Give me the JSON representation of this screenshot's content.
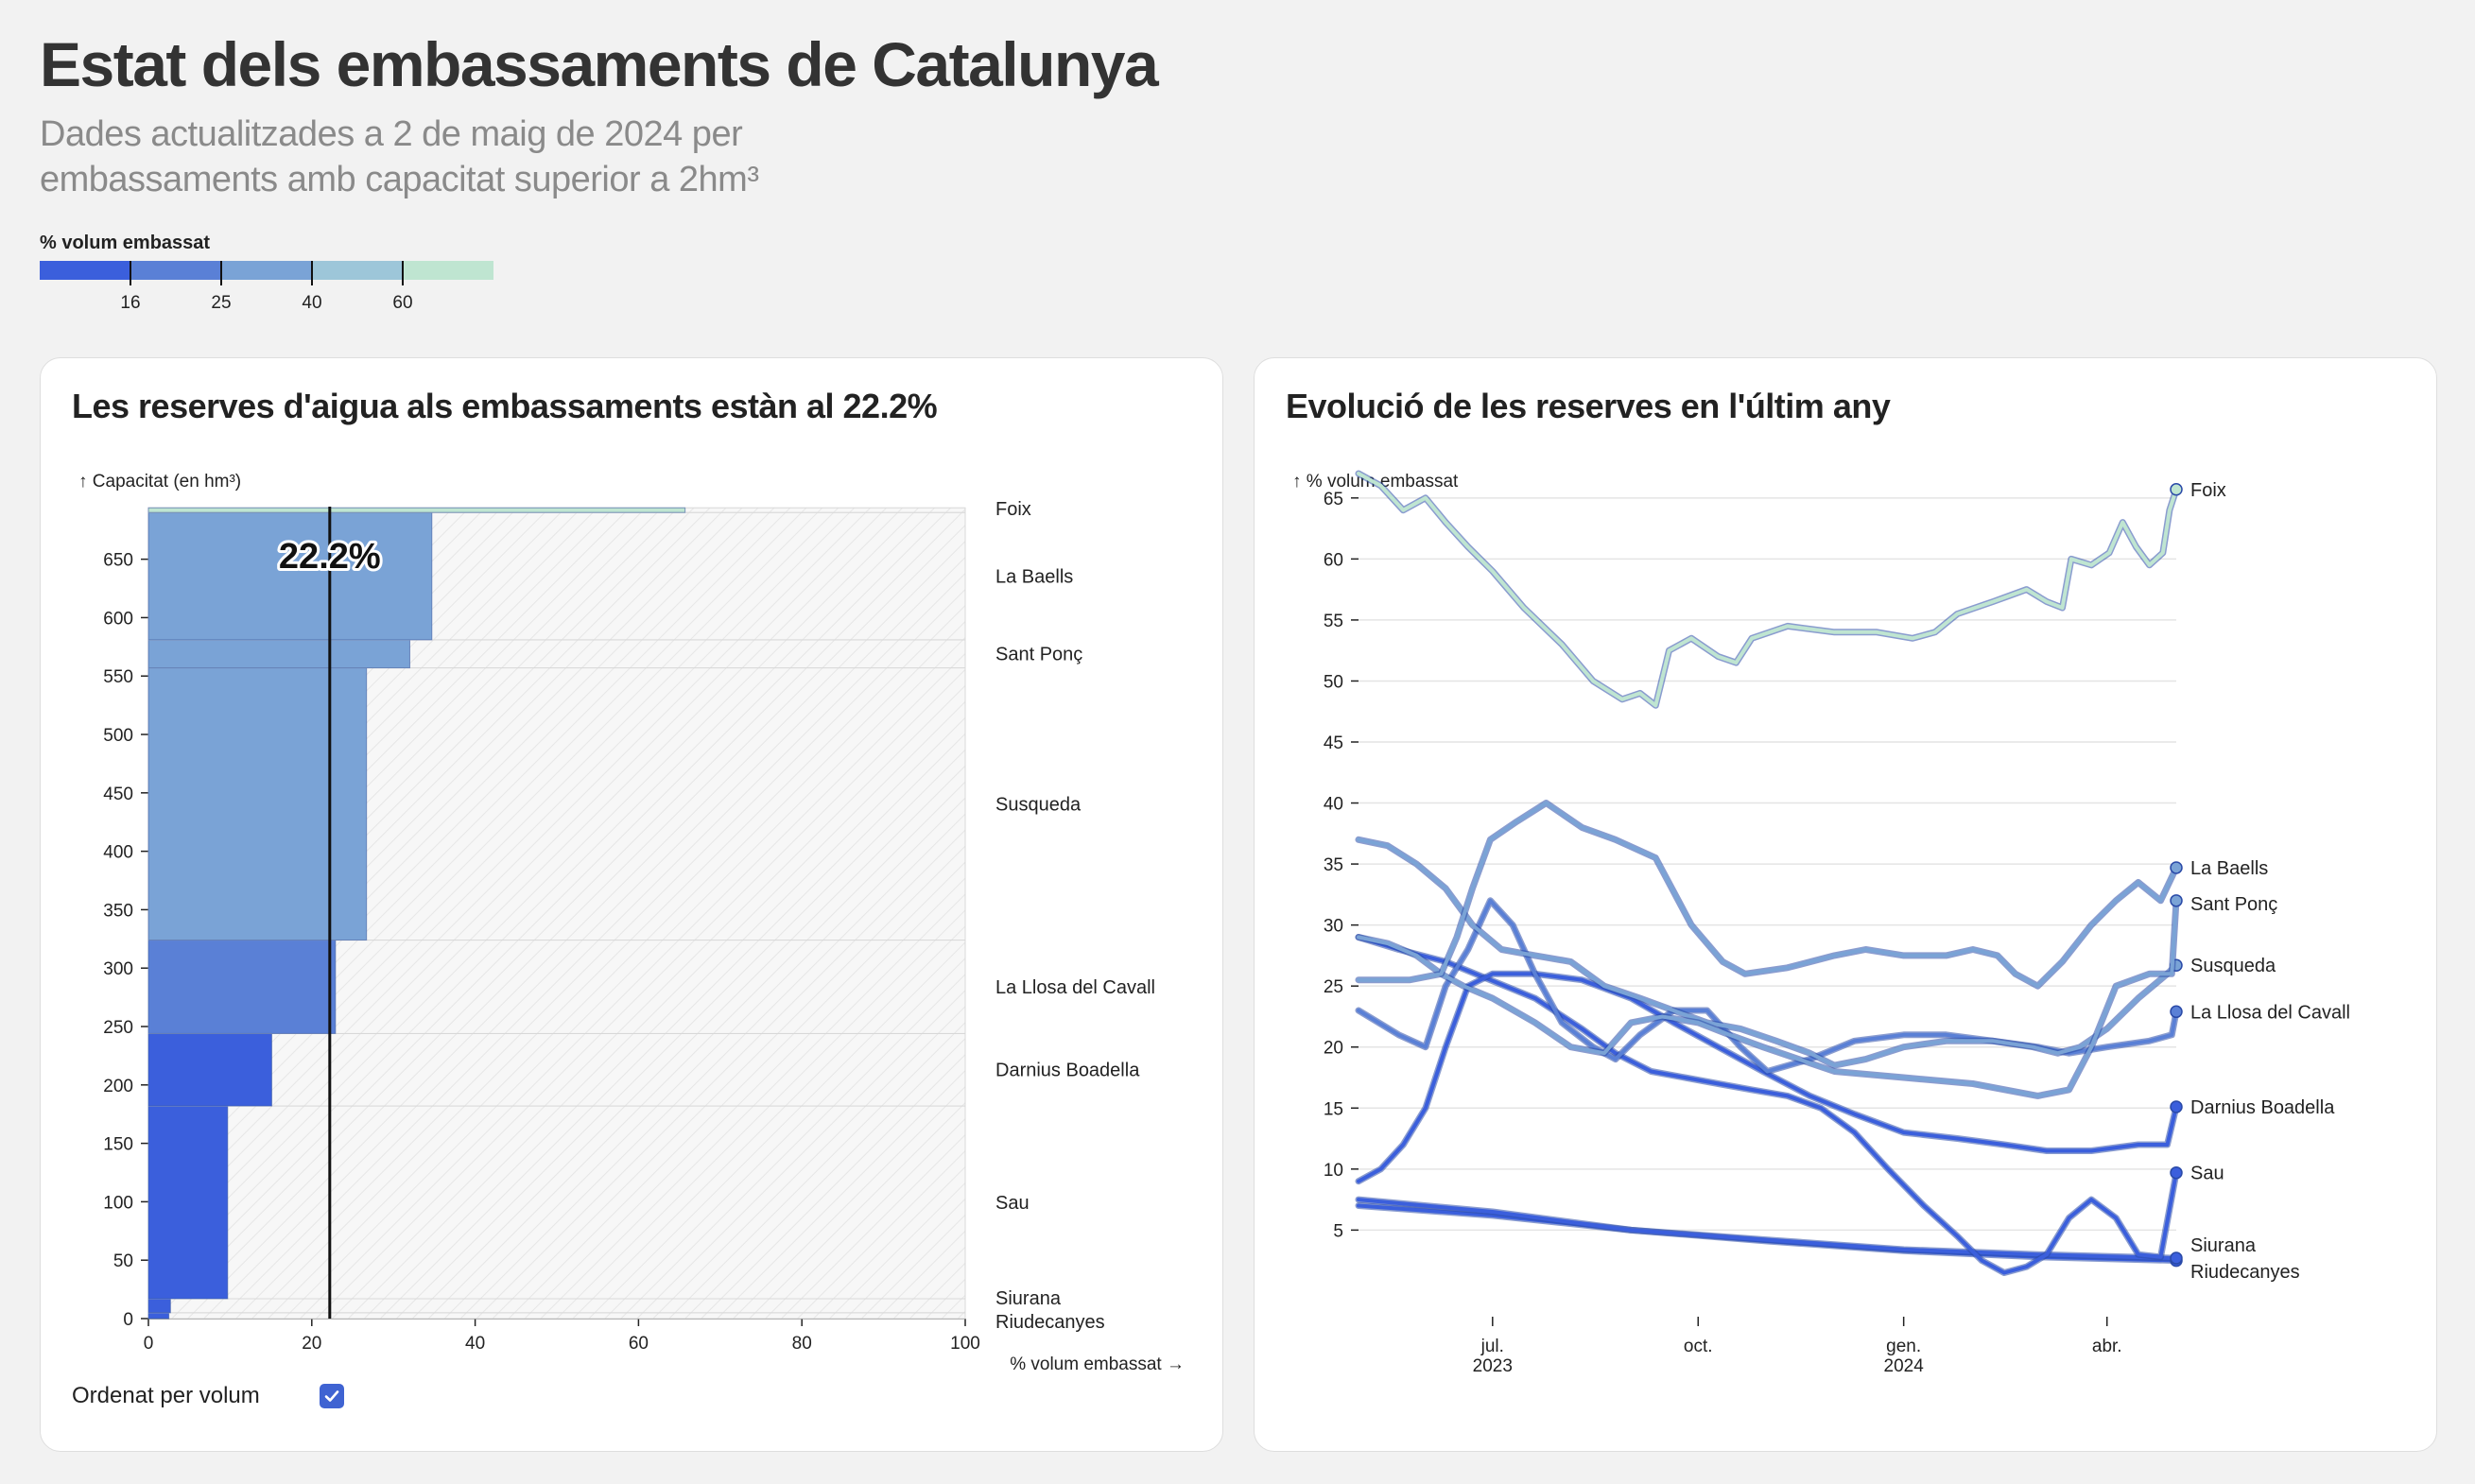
{
  "header": {
    "title": "Estat dels embassaments de Catalunya",
    "subtitle": "Dades actualitzades a 2 de maig de 2024 per embassaments amb capacitat superior a 2hm³"
  },
  "legend": {
    "title": "% volum embassat",
    "thresholds": [
      "16",
      "25",
      "40",
      "60"
    ],
    "colors": [
      "#3b5fdc",
      "#5a80d6",
      "#7aa3d6",
      "#9dc6d9",
      "#bfe5d1"
    ]
  },
  "left_panel": {
    "title": "Les reserves d'aigua als embassaments estàn al 22.2%",
    "sort_label": "Ordenat per volum",
    "sort_checked": true
  },
  "right_panel": {
    "title": "Evolució de les reserves en l'últim any"
  },
  "chart_data": [
    {
      "type": "bar",
      "title": "Les reserves d'aigua als embassaments estàn al 22.2%",
      "xlabel": "% volum embassat →",
      "ylabel": "↑ Capacitat (en hm³)",
      "xlim": [
        0,
        100
      ],
      "ylim": [
        0,
        695
      ],
      "xticks": [
        "0",
        "20",
        "40",
        "60",
        "80",
        "100"
      ],
      "yticks": [
        "0",
        "50",
        "100",
        "150",
        "200",
        "250",
        "300",
        "350",
        "400",
        "450",
        "500",
        "550",
        "600",
        "650"
      ],
      "overall_label": "22.2%",
      "overall_value": 22.2,
      "reservoirs": [
        {
          "name": "Riudecanyes",
          "capacity": 5,
          "pct": 2.5
        },
        {
          "name": "Siurana",
          "capacity": 12,
          "pct": 2.7
        },
        {
          "name": "Sau",
          "capacity": 165,
          "pct": 9.7
        },
        {
          "name": "Darnius Boadella",
          "capacity": 62,
          "pct": 15.1
        },
        {
          "name": "La Llosa del Cavall",
          "capacity": 80,
          "pct": 22.9
        },
        {
          "name": "Susqueda",
          "capacity": 233,
          "pct": 26.7
        },
        {
          "name": "Sant Ponç",
          "capacity": 24,
          "pct": 32.0
        },
        {
          "name": "La Baells",
          "capacity": 109,
          "pct": 34.7
        },
        {
          "name": "Foix",
          "capacity": 4,
          "pct": 65.7
        }
      ]
    },
    {
      "type": "line",
      "title": "Evolució de les reserves en l'últim any",
      "ylabel": "↑ % volum embassat",
      "ylim": [
        1,
        67
      ],
      "yticks": [
        "5",
        "10",
        "15",
        "20",
        "25",
        "30",
        "35",
        "40",
        "45",
        "50",
        "55",
        "60",
        "65"
      ],
      "xticks": [
        {
          "date": "2023-07-01",
          "label": "jul.",
          "sublabel": "2023"
        },
        {
          "date": "2023-10-01",
          "label": "oct.",
          "sublabel": ""
        },
        {
          "date": "2024-01-01",
          "label": "gen.",
          "sublabel": "2024"
        },
        {
          "date": "2024-04-01",
          "label": "abr.",
          "sublabel": ""
        }
      ],
      "xlim": [
        "2023-05-02",
        "2024-05-02"
      ],
      "series": [
        {
          "name": "Foix",
          "points": [
            [
              "2023-05-02",
              67
            ],
            [
              "2023-05-12",
              66
            ],
            [
              "2023-05-22",
              64
            ],
            [
              "2023-06-01",
              65
            ],
            [
              "2023-06-10",
              63
            ],
            [
              "2023-06-20",
              61
            ],
            [
              "2023-07-01",
              59
            ],
            [
              "2023-07-15",
              56
            ],
            [
              "2023-08-01",
              53
            ],
            [
              "2023-08-15",
              50
            ],
            [
              "2023-08-28",
              48.5
            ],
            [
              "2023-09-05",
              49
            ],
            [
              "2023-09-12",
              48
            ],
            [
              "2023-09-18",
              52.5
            ],
            [
              "2023-09-28",
              53.5
            ],
            [
              "2023-10-10",
              52
            ],
            [
              "2023-10-18",
              51.5
            ],
            [
              "2023-10-25",
              53.5
            ],
            [
              "2023-11-10",
              54.5
            ],
            [
              "2023-12-01",
              54
            ],
            [
              "2023-12-20",
              54
            ],
            [
              "2024-01-05",
              53.5
            ],
            [
              "2024-01-15",
              54
            ],
            [
              "2024-01-25",
              55.5
            ],
            [
              "2024-02-10",
              56.5
            ],
            [
              "2024-02-25",
              57.5
            ],
            [
              "2024-03-05",
              56.5
            ],
            [
              "2024-03-12",
              56
            ],
            [
              "2024-03-16",
              60
            ],
            [
              "2024-03-25",
              59.5
            ],
            [
              "2024-04-02",
              60.5
            ],
            [
              "2024-04-08",
              63
            ],
            [
              "2024-04-14",
              61
            ],
            [
              "2024-04-20",
              59.5
            ],
            [
              "2024-04-26",
              60.5
            ],
            [
              "2024-04-29",
              64
            ],
            [
              "2024-05-02",
              65.7
            ]
          ]
        },
        {
          "name": "La Baells",
          "points": [
            [
              "2023-05-02",
              25.5
            ],
            [
              "2023-05-25",
              25.5
            ],
            [
              "2023-06-08",
              26
            ],
            [
              "2023-06-15",
              29
            ],
            [
              "2023-06-22",
              33
            ],
            [
              "2023-06-30",
              37
            ],
            [
              "2023-07-12",
              38.5
            ],
            [
              "2023-07-25",
              40
            ],
            [
              "2023-08-10",
              38
            ],
            [
              "2023-08-25",
              37
            ],
            [
              "2023-09-12",
              35.5
            ],
            [
              "2023-09-28",
              30
            ],
            [
              "2023-10-12",
              27
            ],
            [
              "2023-10-22",
              26
            ],
            [
              "2023-11-10",
              26.5
            ],
            [
              "2023-12-01",
              27.5
            ],
            [
              "2023-12-15",
              28
            ],
            [
              "2024-01-01",
              27.5
            ],
            [
              "2024-01-20",
              27.5
            ],
            [
              "2024-02-01",
              28
            ],
            [
              "2024-02-12",
              27.5
            ],
            [
              "2024-02-20",
              26
            ],
            [
              "2024-03-01",
              25
            ],
            [
              "2024-03-12",
              27
            ],
            [
              "2024-03-25",
              30
            ],
            [
              "2024-04-05",
              32
            ],
            [
              "2024-04-15",
              33.5
            ],
            [
              "2024-04-25",
              32
            ],
            [
              "2024-05-02",
              34.7
            ]
          ]
        },
        {
          "name": "Sant Ponç",
          "points": [
            [
              "2023-05-02",
              29
            ],
            [
              "2023-05-15",
              28.5
            ],
            [
              "2023-05-28",
              27.5
            ],
            [
              "2023-06-08",
              26
            ],
            [
              "2023-06-18",
              25
            ],
            [
              "2023-07-01",
              24
            ],
            [
              "2023-07-20",
              22
            ],
            [
              "2023-08-05",
              20
            ],
            [
              "2023-08-20",
              19.5
            ],
            [
              "2023-09-01",
              22
            ],
            [
              "2023-09-15",
              22.5
            ],
            [
              "2023-10-01",
              22
            ],
            [
              "2023-10-15",
              21
            ],
            [
              "2023-10-30",
              20
            ],
            [
              "2023-11-15",
              19
            ],
            [
              "2023-12-01",
              18
            ],
            [
              "2024-01-01",
              17.5
            ],
            [
              "2024-02-01",
              17
            ],
            [
              "2024-03-01",
              16
            ],
            [
              "2024-03-15",
              16.5
            ],
            [
              "2024-03-25",
              20
            ],
            [
              "2024-04-05",
              25
            ],
            [
              "2024-04-20",
              26
            ],
            [
              "2024-04-30",
              26
            ],
            [
              "2024-05-02",
              32
            ]
          ]
        },
        {
          "name": "Susqueda",
          "points": [
            [
              "2023-05-02",
              37
            ],
            [
              "2023-05-15",
              36.5
            ],
            [
              "2023-05-28",
              35
            ],
            [
              "2023-06-10",
              33
            ],
            [
              "2023-06-22",
              30
            ],
            [
              "2023-07-05",
              28
            ],
            [
              "2023-07-20",
              27.5
            ],
            [
              "2023-08-05",
              27
            ],
            [
              "2023-08-20",
              25
            ],
            [
              "2023-09-05",
              24
            ],
            [
              "2023-09-20",
              23
            ],
            [
              "2023-10-05",
              22
            ],
            [
              "2023-10-20",
              21.5
            ],
            [
              "2023-11-05",
              20.5
            ],
            [
              "2023-11-20",
              19.5
            ],
            [
              "2023-12-01",
              18.5
            ],
            [
              "2023-12-15",
              19
            ],
            [
              "2024-01-01",
              20
            ],
            [
              "2024-01-20",
              20.5
            ],
            [
              "2024-02-10",
              20.5
            ],
            [
              "2024-02-28",
              20
            ],
            [
              "2024-03-10",
              19.5
            ],
            [
              "2024-03-20",
              20
            ],
            [
              "2024-04-01",
              21.5
            ],
            [
              "2024-04-15",
              24
            ],
            [
              "2024-04-28",
              26
            ],
            [
              "2024-05-02",
              26.7
            ]
          ]
        },
        {
          "name": "La Llosa del Cavall",
          "points": [
            [
              "2023-05-02",
              23
            ],
            [
              "2023-05-20",
              21
            ],
            [
              "2023-06-01",
              20
            ],
            [
              "2023-06-10",
              25
            ],
            [
              "2023-06-20",
              28
            ],
            [
              "2023-06-30",
              32
            ],
            [
              "2023-07-10",
              30
            ],
            [
              "2023-07-20",
              26
            ],
            [
              "2023-08-01",
              22
            ],
            [
              "2023-08-15",
              20
            ],
            [
              "2023-08-25",
              19
            ],
            [
              "2023-09-05",
              21
            ],
            [
              "2023-09-20",
              23
            ],
            [
              "2023-10-05",
              23
            ],
            [
              "2023-10-20",
              20
            ],
            [
              "2023-11-01",
              18
            ],
            [
              "2023-11-20",
              19
            ],
            [
              "2023-12-10",
              20.5
            ],
            [
              "2024-01-01",
              21
            ],
            [
              "2024-01-20",
              21
            ],
            [
              "2024-02-10",
              20.5
            ],
            [
              "2024-03-01",
              20
            ],
            [
              "2024-03-15",
              19.5
            ],
            [
              "2024-04-01",
              20
            ],
            [
              "2024-04-20",
              20.5
            ],
            [
              "2024-04-30",
              21
            ],
            [
              "2024-05-02",
              22.9
            ]
          ]
        },
        {
          "name": "Darnius Boadella",
          "points": [
            [
              "2023-05-02",
              9
            ],
            [
              "2023-05-12",
              10
            ],
            [
              "2023-05-22",
              12
            ],
            [
              "2023-06-01",
              15
            ],
            [
              "2023-06-10",
              20
            ],
            [
              "2023-06-20",
              25
            ],
            [
              "2023-07-01",
              26
            ],
            [
              "2023-07-20",
              26
            ],
            [
              "2023-08-10",
              25.5
            ],
            [
              "2023-09-01",
              24
            ],
            [
              "2023-09-20",
              22
            ],
            [
              "2023-10-10",
              20
            ],
            [
              "2023-10-30",
              18
            ],
            [
              "2023-11-20",
              16
            ],
            [
              "2023-12-10",
              14.5
            ],
            [
              "2024-01-01",
              13
            ],
            [
              "2024-01-25",
              12.5
            ],
            [
              "2024-02-15",
              12
            ],
            [
              "2024-03-05",
              11.5
            ],
            [
              "2024-03-25",
              11.5
            ],
            [
              "2024-04-15",
              12
            ],
            [
              "2024-04-28",
              12
            ],
            [
              "2024-05-02",
              15.1
            ]
          ]
        },
        {
          "name": "Sau",
          "points": [
            [
              "2023-05-02",
              29
            ],
            [
              "2023-05-20",
              28
            ],
            [
              "2023-06-10",
              27
            ],
            [
              "2023-06-30",
              25.5
            ],
            [
              "2023-07-20",
              24
            ],
            [
              "2023-08-10",
              21.5
            ],
            [
              "2023-08-25",
              19.5
            ],
            [
              "2023-09-10",
              18
            ],
            [
              "2023-09-25",
              17.5
            ],
            [
              "2023-10-10",
              17
            ],
            [
              "2023-10-25",
              16.5
            ],
            [
              "2023-11-10",
              16
            ],
            [
              "2023-11-25",
              15
            ],
            [
              "2023-12-10",
              13
            ],
            [
              "2023-12-25",
              10
            ],
            [
              "2024-01-10",
              7
            ],
            [
              "2024-01-25",
              4.5
            ],
            [
              "2024-02-05",
              2.5
            ],
            [
              "2024-02-15",
              1.5
            ],
            [
              "2024-02-25",
              2
            ],
            [
              "2024-03-05",
              3
            ],
            [
              "2024-03-15",
              6
            ],
            [
              "2024-03-25",
              7.5
            ],
            [
              "2024-04-05",
              6
            ],
            [
              "2024-04-15",
              3
            ],
            [
              "2024-04-25",
              2.8
            ],
            [
              "2024-05-02",
              9.7
            ]
          ]
        },
        {
          "name": "Siurana",
          "points": [
            [
              "2023-05-02",
              7.5
            ],
            [
              "2023-07-01",
              6.5
            ],
            [
              "2023-09-01",
              5
            ],
            [
              "2023-11-01",
              4.2
            ],
            [
              "2024-01-01",
              3.4
            ],
            [
              "2024-03-01",
              3
            ],
            [
              "2024-05-02",
              2.7
            ]
          ]
        },
        {
          "name": "Riudecanyes",
          "points": [
            [
              "2023-05-02",
              7
            ],
            [
              "2023-07-01",
              6.2
            ],
            [
              "2023-09-01",
              5
            ],
            [
              "2023-11-01",
              4.1
            ],
            [
              "2024-01-01",
              3.3
            ],
            [
              "2024-03-01",
              2.8
            ],
            [
              "2024-05-02",
              2.5
            ]
          ]
        }
      ]
    }
  ]
}
